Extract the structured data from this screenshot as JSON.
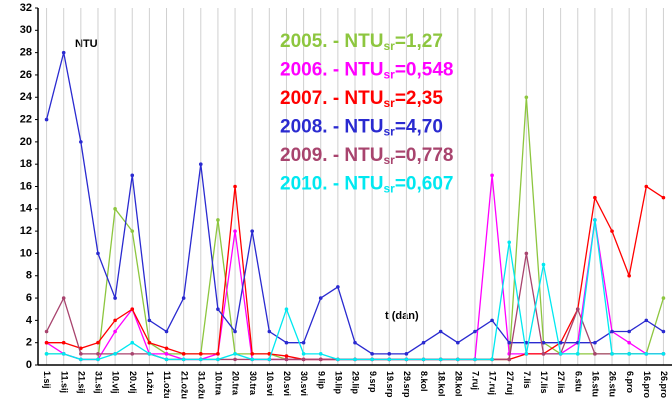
{
  "chart_data": {
    "type": "line",
    "annotations": {
      "y_label": "NTU",
      "x_label": "t (dan)"
    },
    "categories": [
      "1.sij",
      "11.sij",
      "21.sij",
      "31.sij",
      "10.vlj",
      "20.vlj",
      "1.ožu",
      "11.ožu",
      "21.ožu",
      "31.ožu",
      "10.tra",
      "20.tra",
      "30.tra",
      "10.svi",
      "20.svi",
      "30.svi",
      "9.lip",
      "19.lip",
      "29.lip",
      "9.srp",
      "19.srp",
      "29.srp",
      "8.kol",
      "18.kol",
      "28.kol",
      "7.ruj",
      "17.ruj",
      "27.ruj",
      "7.lis",
      "17.lis",
      "27.lis",
      "6.stu",
      "16.stu",
      "26.stu",
      "6.pro",
      "16.pro",
      "26.pro"
    ],
    "series": [
      {
        "name": "2005. - NTU",
        "name_sub": "sr",
        "name_suffix": "=1,27",
        "color": "#8dc63f",
        "values": [
          1,
          1,
          0.5,
          0.5,
          14,
          12,
          2,
          1,
          1,
          1,
          13,
          1,
          1,
          1,
          0.5,
          0.5,
          0.5,
          0.5,
          0.5,
          0.5,
          0.5,
          0.5,
          0.5,
          0.5,
          0.5,
          0.5,
          0.5,
          0.5,
          24,
          2,
          1,
          1,
          1,
          1,
          1,
          1,
          6
        ]
      },
      {
        "name": "2006. - NTU",
        "name_sub": "sr",
        "name_suffix": "=0,548",
        "color": "#ff00ff",
        "values": [
          2,
          1,
          0.5,
          0.5,
          3,
          5,
          1,
          1,
          0.5,
          0.5,
          1,
          12,
          0.5,
          0.5,
          0.5,
          0.5,
          0.5,
          0.5,
          0.5,
          0.5,
          0.5,
          0.5,
          0.5,
          0.5,
          0.5,
          0.5,
          17,
          1,
          1,
          1,
          1,
          2,
          13,
          3,
          2,
          1,
          1
        ]
      },
      {
        "name": "2007. - NTU",
        "name_sub": "sr",
        "name_suffix": "=2,35",
        "color": "#ff0000",
        "values": [
          2,
          2,
          1.5,
          2,
          4,
          5,
          2,
          1.5,
          1,
          1,
          1,
          16,
          1,
          1,
          0.8,
          0.5,
          0.5,
          0.5,
          0.5,
          0.5,
          0.5,
          0.5,
          0.5,
          0.5,
          0.5,
          0.5,
          0.5,
          0.5,
          1,
          1,
          2,
          5,
          15,
          12,
          8,
          16,
          15
        ]
      },
      {
        "name": "2008. - NTU",
        "name_sub": "sr",
        "name_suffix": "=4,70",
        "color": "#2a2ad0",
        "values": [
          22,
          28,
          20,
          10,
          6,
          17,
          4,
          3,
          6,
          18,
          5,
          3,
          12,
          3,
          2,
          2,
          6,
          7,
          2,
          1,
          1,
          1,
          2,
          3,
          2,
          3,
          4,
          2,
          2,
          2,
          2,
          2,
          2,
          3,
          3,
          4,
          3
        ]
      },
      {
        "name": "2009. - NTU",
        "name_sub": "sr",
        "name_suffix": "=0,778",
        "color": "#a8446e",
        "values": [
          3,
          6,
          1,
          1,
          1,
          1,
          1,
          0.5,
          0.5,
          0.5,
          0.5,
          0.5,
          0.5,
          0.5,
          0.5,
          0.5,
          0.5,
          0.5,
          0.5,
          0.5,
          0.5,
          0.5,
          0.5,
          0.5,
          0.5,
          0.5,
          0.5,
          0.5,
          10,
          1,
          1,
          5,
          1,
          1,
          1,
          1,
          1
        ]
      },
      {
        "name": "2010. - NTU",
        "name_sub": "sr",
        "name_suffix": "=0,607",
        "color": "#00e8f0",
        "values": [
          1,
          1,
          0.5,
          0.5,
          1,
          2,
          1,
          0.5,
          0.5,
          0.5,
          0.5,
          1,
          0.5,
          0.5,
          5,
          1,
          1,
          0.5,
          0.5,
          0.5,
          0.5,
          0.5,
          0.5,
          0.5,
          0.5,
          0.5,
          0.5,
          11,
          1,
          9,
          1,
          1,
          13,
          1,
          1,
          1,
          1
        ]
      }
    ],
    "ylim": [
      0,
      32
    ],
    "yticks": [
      0,
      2,
      4,
      6,
      8,
      10,
      12,
      14,
      16,
      18,
      20,
      22,
      24,
      26,
      28,
      30,
      32
    ],
    "grid": "vertical"
  }
}
